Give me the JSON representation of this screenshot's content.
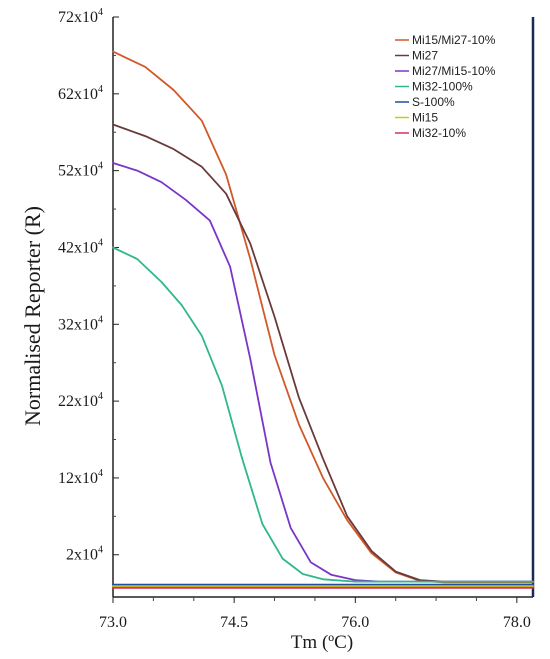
{
  "chart_data": {
    "type": "line",
    "title": "",
    "xlabel": "Tm (ºC)",
    "ylabel": "Normalised Reporter (R)",
    "xlim": [
      73.0,
      78.2
    ],
    "ylim": [
      -3.5,
      72
    ],
    "grid": false,
    "legend_position": "top-right",
    "x_ticks": [
      {
        "value": 73.0,
        "label": "73.0"
      },
      {
        "value": 74.5,
        "label": "74.5"
      },
      {
        "value": 76.0,
        "label": "76.0"
      },
      {
        "value": 78.0,
        "label": "78.0"
      }
    ],
    "y_ticks": [
      {
        "value": 2,
        "base": "2x10",
        "exp": "4"
      },
      {
        "value": 12,
        "base": "12x10",
        "exp": "4"
      },
      {
        "value": 22,
        "base": "22x10",
        "exp": "4"
      },
      {
        "value": 32,
        "base": "32x10",
        "exp": "4"
      },
      {
        "value": 42,
        "base": "42x10",
        "exp": "4"
      },
      {
        "value": 52,
        "base": "52x10",
        "exp": "4"
      },
      {
        "value": 62,
        "base": "62x10",
        "exp": "4"
      },
      {
        "value": 72,
        "base": "72x10",
        "exp": "4"
      }
    ],
    "series": [
      {
        "name": "Mi15/Mi27-10%",
        "color": "#d2582a",
        "x": [
          73.0,
          73.4,
          73.75,
          74.1,
          74.4,
          74.7,
          75.0,
          75.3,
          75.6,
          75.9,
          76.2,
          76.5,
          76.8,
          77.1,
          77.5,
          78.0,
          78.2
        ],
        "y": [
          67.5,
          65.5,
          62.5,
          58.5,
          51.5,
          40.5,
          28.0,
          19.0,
          12.0,
          6.5,
          2.2,
          -0.3,
          -1.4,
          -1.6,
          -1.6,
          -1.6,
          -1.6
        ]
      },
      {
        "name": "Mi27",
        "color": "#6a3a3a",
        "x": [
          73.0,
          73.4,
          73.75,
          74.1,
          74.4,
          74.7,
          75.0,
          75.3,
          75.6,
          75.9,
          76.2,
          76.5,
          76.8,
          77.1,
          77.5,
          78.0,
          78.2
        ],
        "y": [
          58.0,
          56.5,
          54.8,
          52.5,
          49.0,
          42.5,
          33.0,
          22.5,
          14.5,
          7.0,
          2.5,
          -0.2,
          -1.3,
          -1.5,
          -1.5,
          -1.5,
          -1.5
        ]
      },
      {
        "name": "Mi27/Mi15-10%",
        "color": "#7a35c8",
        "x": [
          73.0,
          73.3,
          73.6,
          73.9,
          74.2,
          74.45,
          74.7,
          74.95,
          75.2,
          75.45,
          75.7,
          76.0,
          76.3,
          77.0,
          78.2
        ],
        "y": [
          53.0,
          52.0,
          50.5,
          48.2,
          45.5,
          39.5,
          27.5,
          14.0,
          5.5,
          1.0,
          -0.6,
          -1.3,
          -1.5,
          -1.5,
          -1.5
        ]
      },
      {
        "name": "Mi32-100%",
        "color": "#30b88c",
        "x": [
          73.0,
          73.3,
          73.6,
          73.85,
          74.1,
          74.35,
          74.6,
          74.85,
          75.1,
          75.35,
          75.6,
          76.0,
          76.5,
          77.5,
          78.2
        ],
        "y": [
          42.0,
          40.5,
          37.5,
          34.5,
          30.5,
          24.0,
          14.5,
          6.0,
          1.5,
          -0.5,
          -1.2,
          -1.5,
          -1.5,
          -1.5,
          -1.5
        ]
      },
      {
        "name": "S-100%",
        "color": "#1f4fa0",
        "x": [
          73.0,
          78.2
        ],
        "y": [
          -1.9,
          -1.9
        ]
      },
      {
        "name": "Mi15",
        "color": "#c8c81e",
        "x": [
          73.0,
          78.2
        ],
        "y": [
          -2.1,
          -2.1
        ]
      },
      {
        "name": "Mi32-10%",
        "color": "#d8305a",
        "x": [
          73.0,
          78.2
        ],
        "y": [
          -2.3,
          -2.3
        ]
      }
    ]
  }
}
